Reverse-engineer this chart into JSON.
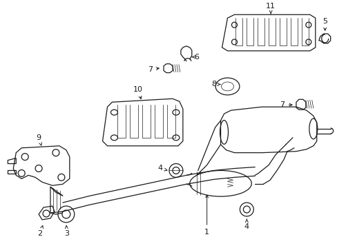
{
  "bg_color": "#ffffff",
  "line_color": "#1a1a1a",
  "fig_width": 4.89,
  "fig_height": 3.6,
  "dpi": 100,
  "lw": 0.9,
  "fs": 8.0
}
